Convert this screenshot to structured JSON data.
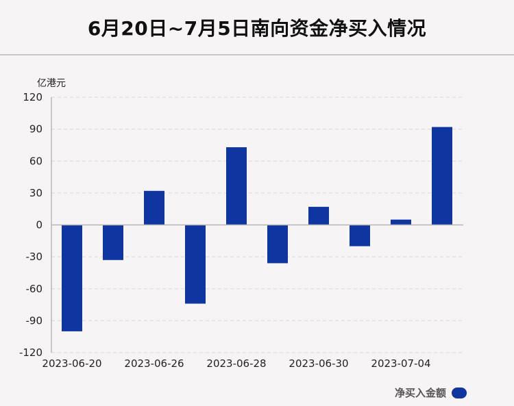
{
  "title": "6月20日~7月5日南向资金净买入情况",
  "unit": "亿港元",
  "legend_label": "净买入金额",
  "bar_color": "#0e35a0",
  "chart_data": {
    "type": "bar",
    "title": "6月20日~7月5日南向资金净买入情况",
    "ylabel": "亿港元",
    "ylim": [
      -120,
      120
    ],
    "yticks": [
      120,
      90,
      60,
      30,
      0,
      -30,
      -60,
      -90,
      -120
    ],
    "x_tick_labels": [
      "2023-06-20",
      "2023-06-26",
      "2023-06-28",
      "2023-06-30",
      "2023-07-04"
    ],
    "x_tick_positions": [
      0,
      2,
      4,
      6,
      8
    ],
    "series": [
      {
        "name": "净买入金额",
        "values": [
          -100,
          -33,
          32,
          -74,
          73,
          -36,
          17,
          -20,
          5,
          92
        ]
      }
    ],
    "grid": true,
    "legend": "bottom-right"
  }
}
